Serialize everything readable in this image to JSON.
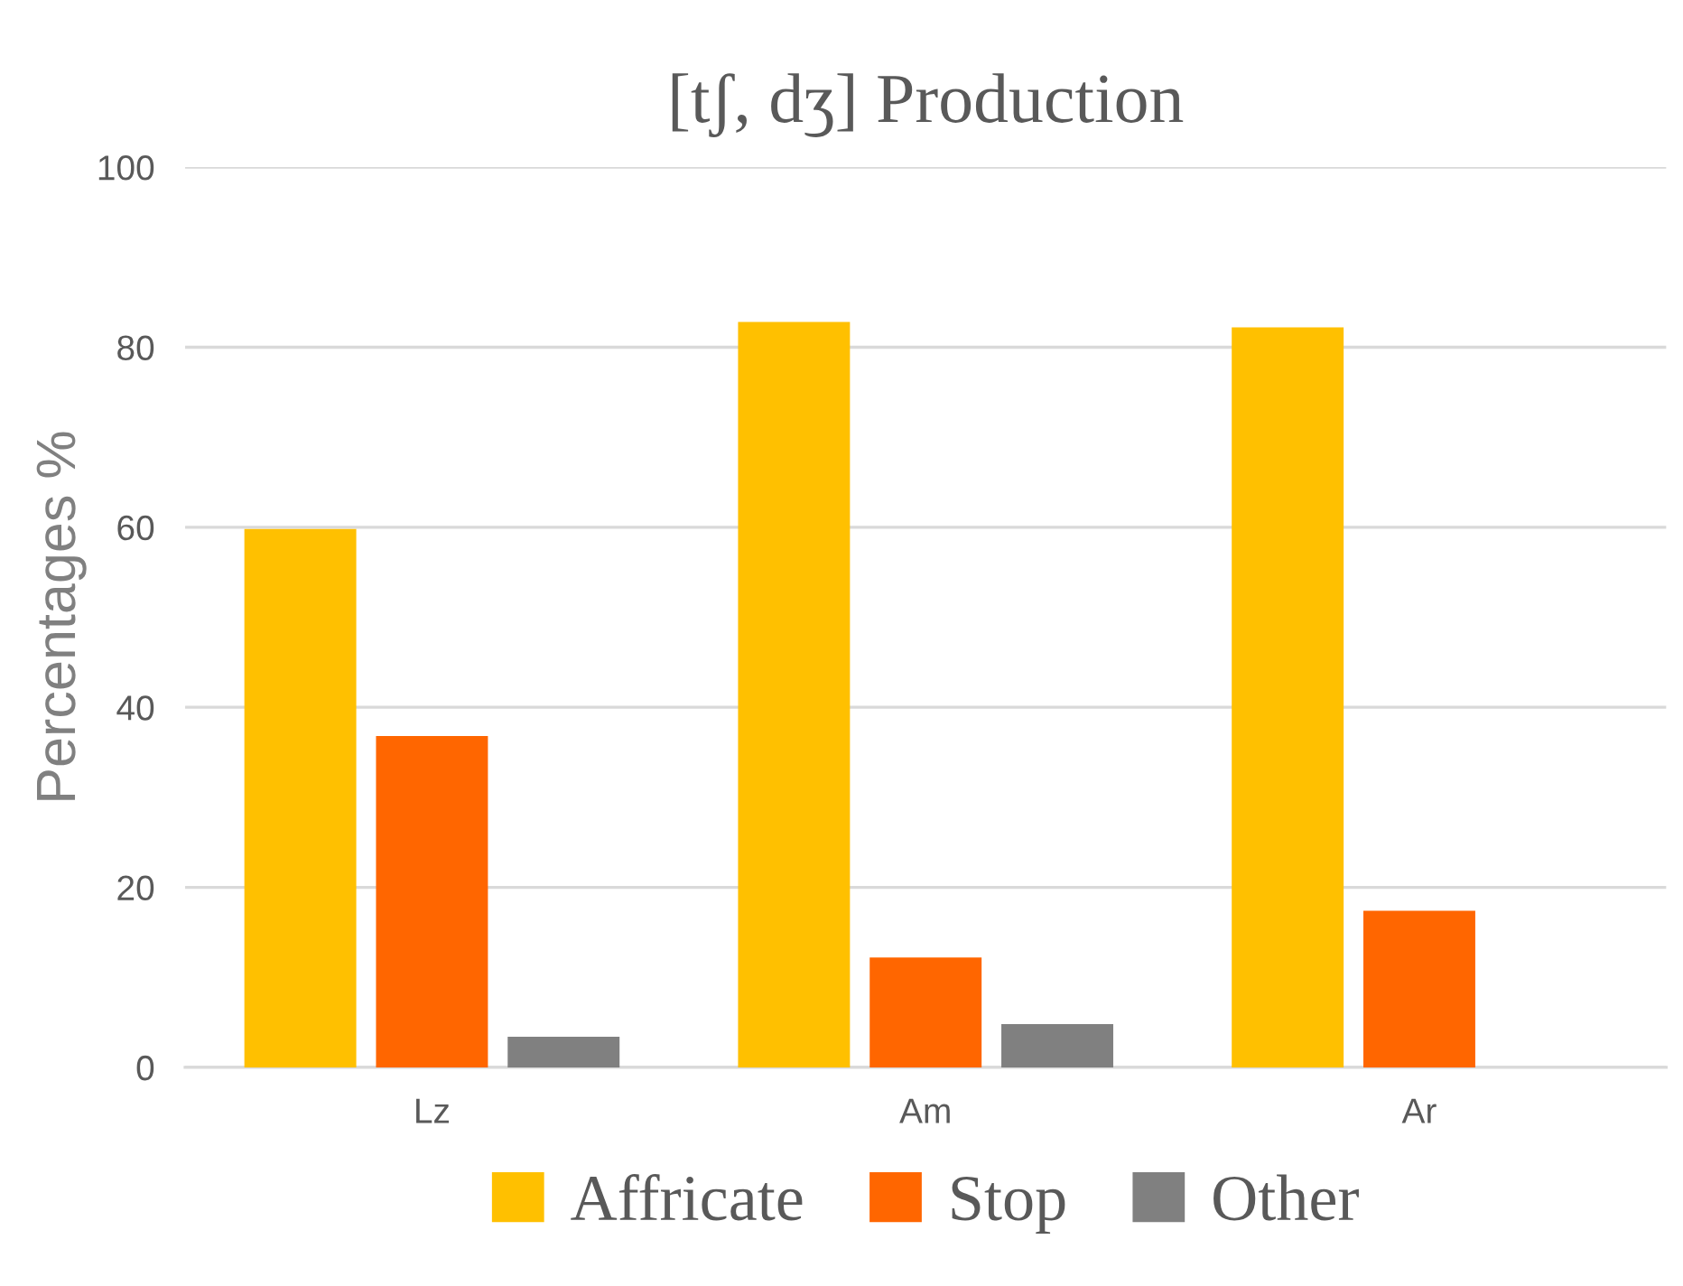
{
  "chart_data": {
    "type": "bar",
    "title": "[tʃ, dʒ] Production",
    "ylabel": "Percentages %",
    "categories": [
      "Lz",
      "Am",
      "Ar"
    ],
    "series": [
      {
        "name": "Affricate",
        "color": "#ffc000",
        "values": [
          59.8,
          82.8,
          82.2
        ]
      },
      {
        "name": "Stop",
        "color": "#ff6600",
        "values": [
          36.8,
          12.2,
          17.4
        ]
      },
      {
        "name": "Other",
        "color": "#808080",
        "values": [
          3.4,
          4.8,
          0
        ]
      }
    ],
    "ylim": [
      0,
      100
    ],
    "yticks": [
      0,
      20,
      40,
      60,
      80,
      100
    ],
    "grid": "y",
    "legend": "bottom"
  }
}
